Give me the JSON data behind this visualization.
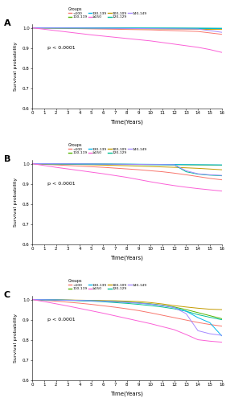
{
  "panels": [
    "A",
    "B",
    "C"
  ],
  "groups": [
    "<100",
    "100-109",
    "110-119",
    "120-129",
    "130-139",
    "140-149",
    "≥150"
  ],
  "colors": {
    "<100": "#F8766D",
    "100-109": "#C49A00",
    "110-119": "#53B400",
    "120-129": "#00C094",
    "130-139": "#00B6EB",
    "140-149": "#A58AFF",
    "≥150": "#FB61D7"
  },
  "xlim": [
    0,
    16
  ],
  "ylim": [
    0.6,
    1.02
  ],
  "yticks": [
    0.6,
    0.7,
    0.8,
    0.9,
    1.0
  ],
  "xticks": [
    0,
    1,
    2,
    3,
    4,
    5,
    6,
    7,
    8,
    9,
    10,
    11,
    12,
    13,
    14,
    15,
    16
  ],
  "xlabel": "Time(Years)",
  "ylabel": "Survival probability",
  "pvalue": "p < 0.0001",
  "panel_A": {
    "<100": [
      [
        0,
        1.0
      ],
      [
        1,
        0.999
      ],
      [
        2,
        0.998
      ],
      [
        3,
        0.997
      ],
      [
        4,
        0.996
      ],
      [
        5,
        0.995
      ],
      [
        6,
        0.994
      ],
      [
        7,
        0.993
      ],
      [
        8,
        0.992
      ],
      [
        9,
        0.991
      ],
      [
        10,
        0.99
      ],
      [
        11,
        0.988
      ],
      [
        12,
        0.986
      ],
      [
        13,
        0.984
      ],
      [
        14,
        0.982
      ],
      [
        15,
        0.975
      ],
      [
        16,
        0.968
      ]
    ],
    "100-109": [
      [
        0,
        1.0
      ],
      [
        2,
        0.999
      ],
      [
        4,
        0.998
      ],
      [
        6,
        0.997
      ],
      [
        8,
        0.996
      ],
      [
        10,
        0.995
      ],
      [
        12,
        0.994
      ],
      [
        14,
        0.993
      ],
      [
        16,
        0.992
      ]
    ],
    "110-119": [
      [
        0,
        1.0
      ],
      [
        2,
        0.9995
      ],
      [
        4,
        0.999
      ],
      [
        6,
        0.9988
      ],
      [
        8,
        0.9985
      ],
      [
        10,
        0.998
      ],
      [
        12,
        0.9978
      ],
      [
        14,
        0.9975
      ],
      [
        16,
        0.997
      ]
    ],
    "120-129": [
      [
        0,
        1.0
      ],
      [
        2,
        0.9995
      ],
      [
        4,
        0.999
      ],
      [
        6,
        0.9988
      ],
      [
        8,
        0.9985
      ],
      [
        10,
        0.998
      ],
      [
        12,
        0.9978
      ],
      [
        14,
        0.9975
      ],
      [
        16,
        0.997
      ]
    ],
    "130-139": [
      [
        0,
        1.0
      ],
      [
        2,
        0.9997
      ],
      [
        4,
        0.9995
      ],
      [
        6,
        0.9992
      ],
      [
        8,
        0.999
      ],
      [
        10,
        0.9988
      ],
      [
        12,
        0.9985
      ],
      [
        14,
        0.998
      ],
      [
        16,
        0.9975
      ]
    ],
    "140-149": [
      [
        0,
        1.0
      ],
      [
        2,
        0.9995
      ],
      [
        4,
        0.999
      ],
      [
        6,
        0.998
      ],
      [
        8,
        0.997
      ],
      [
        10,
        0.996
      ],
      [
        12,
        0.995
      ],
      [
        14,
        0.994
      ],
      [
        16,
        0.978
      ]
    ],
    "≥150": [
      [
        0,
        1.0
      ],
      [
        1,
        0.993
      ],
      [
        2,
        0.986
      ],
      [
        3,
        0.979
      ],
      [
        4,
        0.972
      ],
      [
        5,
        0.965
      ],
      [
        6,
        0.959
      ],
      [
        7,
        0.953
      ],
      [
        8,
        0.947
      ],
      [
        9,
        0.941
      ],
      [
        10,
        0.935
      ],
      [
        11,
        0.927
      ],
      [
        12,
        0.919
      ],
      [
        13,
        0.911
      ],
      [
        14,
        0.903
      ],
      [
        15,
        0.892
      ],
      [
        16,
        0.878
      ]
    ]
  },
  "panel_B": {
    "<100": [
      [
        0,
        1.0
      ],
      [
        1,
        0.997
      ],
      [
        2,
        0.994
      ],
      [
        3,
        0.991
      ],
      [
        4,
        0.988
      ],
      [
        5,
        0.985
      ],
      [
        6,
        0.982
      ],
      [
        7,
        0.978
      ],
      [
        8,
        0.974
      ],
      [
        9,
        0.97
      ],
      [
        10,
        0.965
      ],
      [
        11,
        0.96
      ],
      [
        12,
        0.953
      ],
      [
        13,
        0.945
      ],
      [
        14,
        0.936
      ],
      [
        15,
        0.927
      ],
      [
        16,
        0.92
      ]
    ],
    "100-109": [
      [
        0,
        1.0
      ],
      [
        2,
        0.998
      ],
      [
        4,
        0.996
      ],
      [
        6,
        0.993
      ],
      [
        8,
        0.99
      ],
      [
        10,
        0.986
      ],
      [
        12,
        0.982
      ],
      [
        14,
        0.977
      ],
      [
        16,
        0.97
      ]
    ],
    "110-119": [
      [
        0,
        1.0
      ],
      [
        2,
        0.9993
      ],
      [
        4,
        0.9985
      ],
      [
        6,
        0.998
      ],
      [
        8,
        0.997
      ],
      [
        10,
        0.996
      ],
      [
        12,
        0.995
      ],
      [
        14,
        0.994
      ],
      [
        16,
        0.993
      ]
    ],
    "120-129": [
      [
        0,
        1.0
      ],
      [
        2,
        0.999
      ],
      [
        4,
        0.998
      ],
      [
        6,
        0.997
      ],
      [
        8,
        0.996
      ],
      [
        10,
        0.995
      ],
      [
        12,
        0.994
      ],
      [
        13,
        0.96
      ],
      [
        14,
        0.948
      ],
      [
        15,
        0.943
      ],
      [
        16,
        0.94
      ]
    ],
    "130-139": [
      [
        0,
        1.0
      ],
      [
        2,
        0.9995
      ],
      [
        4,
        0.999
      ],
      [
        6,
        0.9985
      ],
      [
        8,
        0.998
      ],
      [
        10,
        0.997
      ],
      [
        12,
        0.996
      ],
      [
        14,
        0.995
      ],
      [
        16,
        0.994
      ]
    ],
    "140-149": [
      [
        0,
        1.0
      ],
      [
        2,
        0.9995
      ],
      [
        4,
        0.999
      ],
      [
        6,
        0.998
      ],
      [
        8,
        0.997
      ],
      [
        10,
        0.996
      ],
      [
        12,
        0.995
      ],
      [
        13,
        0.965
      ],
      [
        14,
        0.95
      ],
      [
        15,
        0.945
      ],
      [
        16,
        0.942
      ]
    ],
    "≥150": [
      [
        0,
        1.0
      ],
      [
        1,
        0.991
      ],
      [
        2,
        0.982
      ],
      [
        3,
        0.974
      ],
      [
        4,
        0.966
      ],
      [
        5,
        0.958
      ],
      [
        6,
        0.95
      ],
      [
        7,
        0.941
      ],
      [
        8,
        0.932
      ],
      [
        9,
        0.921
      ],
      [
        10,
        0.91
      ],
      [
        11,
        0.9
      ],
      [
        12,
        0.891
      ],
      [
        13,
        0.883
      ],
      [
        14,
        0.876
      ],
      [
        15,
        0.87
      ],
      [
        16,
        0.864
      ]
    ]
  },
  "panel_C": {
    "<100": [
      [
        0,
        1.0
      ],
      [
        1,
        0.996
      ],
      [
        2,
        0.992
      ],
      [
        3,
        0.987
      ],
      [
        4,
        0.982
      ],
      [
        5,
        0.976
      ],
      [
        6,
        0.969
      ],
      [
        7,
        0.962
      ],
      [
        8,
        0.954
      ],
      [
        9,
        0.945
      ],
      [
        10,
        0.934
      ],
      [
        11,
        0.922
      ],
      [
        12,
        0.91
      ],
      [
        13,
        0.898
      ],
      [
        14,
        0.886
      ],
      [
        15,
        0.876
      ],
      [
        16,
        0.868
      ]
    ],
    "100-109": [
      [
        0,
        1.0
      ],
      [
        1,
        0.9995
      ],
      [
        2,
        0.999
      ],
      [
        3,
        0.998
      ],
      [
        4,
        0.997
      ],
      [
        5,
        0.996
      ],
      [
        6,
        0.995
      ],
      [
        7,
        0.994
      ],
      [
        8,
        0.992
      ],
      [
        9,
        0.99
      ],
      [
        10,
        0.985
      ],
      [
        11,
        0.978
      ],
      [
        12,
        0.97
      ],
      [
        13,
        0.963
      ],
      [
        14,
        0.957
      ],
      [
        15,
        0.952
      ],
      [
        16,
        0.95
      ]
    ],
    "110-119": [
      [
        0,
        1.0
      ],
      [
        1,
        0.999
      ],
      [
        2,
        0.998
      ],
      [
        3,
        0.997
      ],
      [
        4,
        0.996
      ],
      [
        5,
        0.995
      ],
      [
        6,
        0.993
      ],
      [
        7,
        0.991
      ],
      [
        8,
        0.988
      ],
      [
        9,
        0.984
      ],
      [
        10,
        0.979
      ],
      [
        11,
        0.972
      ],
      [
        12,
        0.963
      ],
      [
        13,
        0.95
      ],
      [
        14,
        0.935
      ],
      [
        15,
        0.92
      ],
      [
        16,
        0.905
      ]
    ],
    "120-129": [
      [
        0,
        1.0
      ],
      [
        1,
        0.999
      ],
      [
        2,
        0.998
      ],
      [
        3,
        0.996
      ],
      [
        4,
        0.994
      ],
      [
        5,
        0.992
      ],
      [
        6,
        0.989
      ],
      [
        7,
        0.985
      ],
      [
        8,
        0.981
      ],
      [
        9,
        0.976
      ],
      [
        10,
        0.97
      ],
      [
        11,
        0.963
      ],
      [
        12,
        0.954
      ],
      [
        13,
        0.942
      ],
      [
        14,
        0.925
      ],
      [
        15,
        0.912
      ],
      [
        16,
        0.9
      ]
    ],
    "130-139": [
      [
        0,
        1.0
      ],
      [
        1,
        0.999
      ],
      [
        2,
        0.998
      ],
      [
        3,
        0.997
      ],
      [
        4,
        0.996
      ],
      [
        5,
        0.994
      ],
      [
        6,
        0.992
      ],
      [
        7,
        0.989
      ],
      [
        8,
        0.986
      ],
      [
        9,
        0.982
      ],
      [
        10,
        0.977
      ],
      [
        11,
        0.97
      ],
      [
        12,
        0.96
      ],
      [
        13,
        0.942
      ],
      [
        14,
        0.91
      ],
      [
        15,
        0.885
      ],
      [
        16,
        0.82
      ]
    ],
    "140-149": [
      [
        0,
        1.0
      ],
      [
        1,
        0.999
      ],
      [
        2,
        0.998
      ],
      [
        3,
        0.997
      ],
      [
        4,
        0.996
      ],
      [
        5,
        0.994
      ],
      [
        6,
        0.992
      ],
      [
        7,
        0.989
      ],
      [
        8,
        0.986
      ],
      [
        9,
        0.982
      ],
      [
        10,
        0.977
      ],
      [
        11,
        0.97
      ],
      [
        12,
        0.96
      ],
      [
        13,
        0.93
      ],
      [
        14,
        0.845
      ],
      [
        15,
        0.83
      ],
      [
        16,
        0.822
      ]
    ],
    "≥150": [
      [
        0,
        1.0
      ],
      [
        1,
        0.99
      ],
      [
        2,
        0.979
      ],
      [
        3,
        0.968
      ],
      [
        4,
        0.956
      ],
      [
        5,
        0.944
      ],
      [
        6,
        0.932
      ],
      [
        7,
        0.919
      ],
      [
        8,
        0.906
      ],
      [
        9,
        0.893
      ],
      [
        10,
        0.88
      ],
      [
        11,
        0.865
      ],
      [
        12,
        0.85
      ],
      [
        13,
        0.826
      ],
      [
        14,
        0.8
      ],
      [
        15,
        0.793
      ],
      [
        16,
        0.788
      ]
    ]
  },
  "legend_row1": [
    "<100",
    "110-119",
    "130-139",
    "≥150"
  ],
  "legend_row2": [
    "100-109",
    "120-129",
    "140-149"
  ]
}
